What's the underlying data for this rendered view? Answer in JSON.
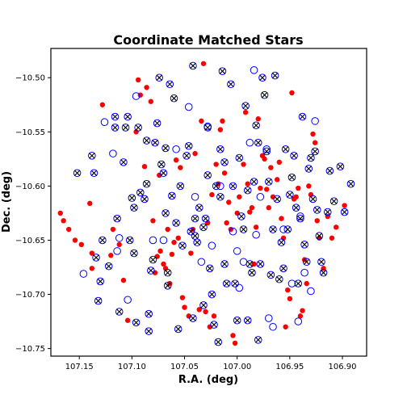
{
  "chart_data": {
    "type": "scatter",
    "title": "Coordinate Matched Stars",
    "xlabel": "R.A. (deg)",
    "ylabel": "Dec. (deg)",
    "xlim": [
      107.177,
      106.877
    ],
    "ylim": [
      -10.757,
      -10.473
    ],
    "x_inverted": true,
    "xticks": [
      107.15,
      107.1,
      107.05,
      107.0,
      106.95,
      106.9
    ],
    "xtick_labels": [
      "107.15",
      "107.10",
      "107.05",
      "107.00",
      "106.95",
      "106.90"
    ],
    "yticks": [
      -10.5,
      -10.55,
      -10.6,
      -10.65,
      -10.7,
      -10.75
    ],
    "ytick_labels": [
      "−10.50",
      "−10.55",
      "−10.60",
      "−10.65",
      "−10.70",
      "−10.75"
    ],
    "grid": false,
    "colors": {
      "dots": "#ff0000",
      "circles": "#0000ff",
      "crosses": "#000000"
    },
    "series": [
      {
        "marker": "filled-dot",
        "color": "#ff0000",
        "points": [
          [
            107.168,
            -10.625
          ],
          [
            107.165,
            -10.632
          ],
          [
            107.16,
            -10.64
          ],
          [
            107.154,
            -10.65
          ],
          [
            107.148,
            -10.654
          ],
          [
            107.14,
            -10.616
          ],
          [
            107.138,
            -10.662
          ],
          [
            107.138,
            -10.676
          ],
          [
            107.128,
            -10.525
          ],
          [
            107.12,
            -10.664
          ],
          [
            107.118,
            -10.64
          ],
          [
            107.112,
            -10.654
          ],
          [
            107.108,
            -10.687
          ],
          [
            107.104,
            -10.724
          ],
          [
            107.096,
            -10.55
          ],
          [
            107.094,
            -10.502
          ],
          [
            107.092,
            -10.516
          ],
          [
            107.088,
            -10.582
          ],
          [
            107.086,
            -10.509
          ],
          [
            107.082,
            -10.522
          ],
          [
            107.08,
            -10.632
          ],
          [
            107.078,
            -10.68
          ],
          [
            107.076,
            -10.665
          ],
          [
            107.074,
            -10.59
          ],
          [
            107.073,
            -10.66
          ],
          [
            107.07,
            -10.672
          ],
          [
            107.068,
            -10.676
          ],
          [
            107.066,
            -10.64
          ],
          [
            107.064,
            -10.69
          ],
          [
            107.062,
            -10.663
          ],
          [
            107.06,
            -10.652
          ],
          [
            107.058,
            -10.576
          ],
          [
            107.056,
            -10.648
          ],
          [
            107.054,
            -10.583
          ],
          [
            107.052,
            -10.703
          ],
          [
            107.05,
            -10.712
          ],
          [
            107.046,
            -10.72
          ],
          [
            107.044,
            -10.662
          ],
          [
            107.042,
            -10.64
          ],
          [
            107.04,
            -10.57
          ],
          [
            107.036,
            -10.714
          ],
          [
            107.034,
            -10.54
          ],
          [
            107.032,
            -10.487
          ],
          [
            107.03,
            -10.716
          ],
          [
            107.028,
            -10.634
          ],
          [
            107.026,
            -10.73
          ],
          [
            107.024,
            -10.608
          ],
          [
            107.022,
            -10.72
          ],
          [
            107.02,
            -10.58
          ],
          [
            107.018,
            -10.598
          ],
          [
            107.016,
            -10.548
          ],
          [
            107.014,
            -10.54
          ],
          [
            107.012,
            -10.588
          ],
          [
            107.01,
            -10.634
          ],
          [
            107.008,
            -10.615
          ],
          [
            107.006,
            -10.64
          ],
          [
            107.004,
            -10.738
          ],
          [
            107.002,
            -10.745
          ],
          [
            107.0,
            -10.625
          ],
          [
            106.998,
            -10.61
          ],
          [
            106.994,
            -10.58
          ],
          [
            106.992,
            -10.532
          ],
          [
            106.99,
            -10.598
          ],
          [
            106.988,
            -10.624
          ],
          [
            106.986,
            -10.62
          ],
          [
            106.984,
            -10.672
          ],
          [
            106.982,
            -10.638
          ],
          [
            106.98,
            -10.538
          ],
          [
            106.978,
            -10.602
          ],
          [
            106.976,
            -10.572
          ],
          [
            106.974,
            -10.575
          ],
          [
            106.972,
            -10.603
          ],
          [
            106.97,
            -10.62
          ],
          [
            106.968,
            -10.583
          ],
          [
            106.966,
            -10.61
          ],
          [
            106.962,
            -10.594
          ],
          [
            106.96,
            -10.578
          ],
          [
            106.958,
            -10.63
          ],
          [
            106.956,
            -10.648
          ],
          [
            106.954,
            -10.73
          ],
          [
            106.952,
            -10.696
          ],
          [
            106.95,
            -10.704
          ],
          [
            106.948,
            -10.514
          ],
          [
            106.946,
            -10.612
          ],
          [
            106.944,
            -10.61
          ],
          [
            106.942,
            -10.602
          ],
          [
            106.94,
            -10.72
          ],
          [
            106.938,
            -10.715
          ],
          [
            106.936,
            -10.668
          ],
          [
            106.934,
            -10.69
          ],
          [
            106.932,
            -10.6
          ],
          [
            106.93,
            -10.608
          ],
          [
            106.928,
            -10.552
          ],
          [
            106.926,
            -10.56
          ],
          [
            106.924,
            -10.632
          ],
          [
            106.922,
            -10.648
          ],
          [
            106.918,
            -10.676
          ],
          [
            106.914,
            -10.628
          ],
          [
            106.91,
            -10.648
          ],
          [
            106.906,
            -10.638
          ],
          [
            106.898,
            -10.618
          ]
        ]
      },
      {
        "marker": "open-circle",
        "color": "#0000ff",
        "points": [
          [
            107.146,
            -10.681
          ],
          [
            107.126,
            -10.541
          ],
          [
            107.118,
            -10.57
          ],
          [
            107.114,
            -10.66
          ],
          [
            107.112,
            -10.648
          ],
          [
            107.104,
            -10.705
          ],
          [
            107.096,
            -10.517
          ],
          [
            107.08,
            -10.65
          ],
          [
            107.07,
            -10.65
          ],
          [
            107.058,
            -10.566
          ],
          [
            107.046,
            -10.527
          ],
          [
            107.04,
            -10.61
          ],
          [
            107.034,
            -10.67
          ],
          [
            107.028,
            -10.545
          ],
          [
            107.024,
            -10.655
          ],
          [
            107.016,
            -10.6
          ],
          [
            107.004,
            -10.642
          ],
          [
            107.0,
            -10.66
          ],
          [
            106.998,
            -10.694
          ],
          [
            106.994,
            -10.67
          ],
          [
            106.988,
            -10.56
          ],
          [
            106.984,
            -10.493
          ],
          [
            106.982,
            -10.645
          ],
          [
            106.978,
            -10.61
          ],
          [
            106.972,
            -10.566
          ],
          [
            106.97,
            -10.722
          ],
          [
            106.966,
            -10.73
          ],
          [
            106.956,
            -10.64
          ],
          [
            106.948,
            -10.69
          ],
          [
            106.942,
            -10.725
          ],
          [
            106.94,
            -10.628
          ],
          [
            106.936,
            -10.68
          ],
          [
            106.93,
            -10.697
          ],
          [
            106.926,
            -10.54
          ]
        ]
      },
      {
        "marker": "x-in-circle",
        "color": "#000000",
        "points": [
          [
            107.152,
            -10.588
          ],
          [
            107.138,
            -10.572
          ],
          [
            107.136,
            -10.588
          ],
          [
            107.134,
            -10.666
          ],
          [
            107.132,
            -10.706
          ],
          [
            107.13,
            -10.688
          ],
          [
            107.128,
            -10.65
          ],
          [
            107.122,
            -10.674
          ],
          [
            107.116,
            -10.536
          ],
          [
            107.116,
            -10.546
          ],
          [
            107.114,
            -10.63
          ],
          [
            107.112,
            -10.716
          ],
          [
            107.108,
            -10.578
          ],
          [
            107.106,
            -10.546
          ],
          [
            107.104,
            -10.536
          ],
          [
            107.102,
            -10.65
          ],
          [
            107.1,
            -10.611
          ],
          [
            107.098,
            -10.62
          ],
          [
            107.098,
            -10.662
          ],
          [
            107.096,
            -10.726
          ],
          [
            107.094,
            -10.546
          ],
          [
            107.092,
            -10.606
          ],
          [
            107.088,
            -10.612
          ],
          [
            107.086,
            -10.558
          ],
          [
            107.086,
            -10.598
          ],
          [
            107.084,
            -10.734
          ],
          [
            107.084,
            -10.718
          ],
          [
            107.082,
            -10.678
          ],
          [
            107.08,
            -10.668
          ],
          [
            107.078,
            -10.56
          ],
          [
            107.076,
            -10.542
          ],
          [
            107.074,
            -10.5
          ],
          [
            107.072,
            -10.58
          ],
          [
            107.07,
            -10.588
          ],
          [
            107.068,
            -10.565
          ],
          [
            107.068,
            -10.625
          ],
          [
            107.066,
            -10.692
          ],
          [
            107.066,
            -10.68
          ],
          [
            107.064,
            -10.506
          ],
          [
            107.062,
            -10.609
          ],
          [
            107.06,
            -10.519
          ],
          [
            107.058,
            -10.634
          ],
          [
            107.056,
            -10.732
          ],
          [
            107.054,
            -10.6
          ],
          [
            107.052,
            -10.655
          ],
          [
            107.048,
            -10.572
          ],
          [
            107.046,
            -10.563
          ],
          [
            107.044,
            -10.642
          ],
          [
            107.042,
            -10.489
          ],
          [
            107.042,
            -10.722
          ],
          [
            107.04,
            -10.63
          ],
          [
            107.04,
            -10.646
          ],
          [
            107.038,
            -10.652
          ],
          [
            107.036,
            -10.62
          ],
          [
            107.032,
            -10.638
          ],
          [
            107.032,
            -10.71
          ],
          [
            107.03,
            -10.63
          ],
          [
            107.028,
            -10.546
          ],
          [
            107.028,
            -10.59
          ],
          [
            107.026,
            -10.676
          ],
          [
            107.024,
            -10.7
          ],
          [
            107.022,
            -10.728
          ],
          [
            107.02,
            -10.6
          ],
          [
            107.018,
            -10.744
          ],
          [
            107.016,
            -10.566
          ],
          [
            107.016,
            -10.61
          ],
          [
            107.014,
            -10.494
          ],
          [
            107.012,
            -10.578
          ],
          [
            107.012,
            -10.672
          ],
          [
            107.01,
            -10.69
          ],
          [
            107.006,
            -10.506
          ],
          [
            107.004,
            -10.6
          ],
          [
            107.002,
            -10.69
          ],
          [
            107.0,
            -10.724
          ],
          [
            106.998,
            -10.574
          ],
          [
            106.996,
            -10.628
          ],
          [
            106.994,
            -10.64
          ],
          [
            106.992,
            -10.526
          ],
          [
            106.99,
            -10.604
          ],
          [
            106.99,
            -10.724
          ],
          [
            106.988,
            -10.672
          ],
          [
            106.986,
            -10.68
          ],
          [
            106.984,
            -10.596
          ],
          [
            106.982,
            -10.544
          ],
          [
            106.98,
            -10.56
          ],
          [
            106.98,
            -10.742
          ],
          [
            106.978,
            -10.672
          ],
          [
            106.976,
            -10.5
          ],
          [
            106.974,
            -10.516
          ],
          [
            106.972,
            -10.568
          ],
          [
            106.97,
            -10.596
          ],
          [
            106.968,
            -10.682
          ],
          [
            106.966,
            -10.64
          ],
          [
            106.964,
            -10.498
          ],
          [
            106.962,
            -10.612
          ],
          [
            106.96,
            -10.686
          ],
          [
            106.958,
            -10.652
          ],
          [
            106.956,
            -10.676
          ],
          [
            106.954,
            -10.566
          ],
          [
            106.952,
            -10.64
          ],
          [
            106.95,
            -10.608
          ],
          [
            106.948,
            -10.592
          ],
          [
            106.946,
            -10.572
          ],
          [
            106.944,
            -10.62
          ],
          [
            106.942,
            -10.69
          ],
          [
            106.94,
            -10.63
          ],
          [
            106.938,
            -10.536
          ],
          [
            106.936,
            -10.654
          ],
          [
            106.934,
            -10.67
          ],
          [
            106.932,
            -10.584
          ],
          [
            106.93,
            -10.574
          ],
          [
            106.928,
            -10.612
          ],
          [
            106.926,
            -10.568
          ],
          [
            106.924,
            -10.622
          ],
          [
            106.922,
            -10.646
          ],
          [
            106.92,
            -10.67
          ],
          [
            106.918,
            -10.68
          ],
          [
            106.914,
            -10.624
          ],
          [
            106.912,
            -10.586
          ],
          [
            106.908,
            -10.614
          ],
          [
            106.902,
            -10.582
          ],
          [
            106.898,
            -10.624
          ],
          [
            106.892,
            -10.598
          ]
        ]
      }
    ]
  }
}
